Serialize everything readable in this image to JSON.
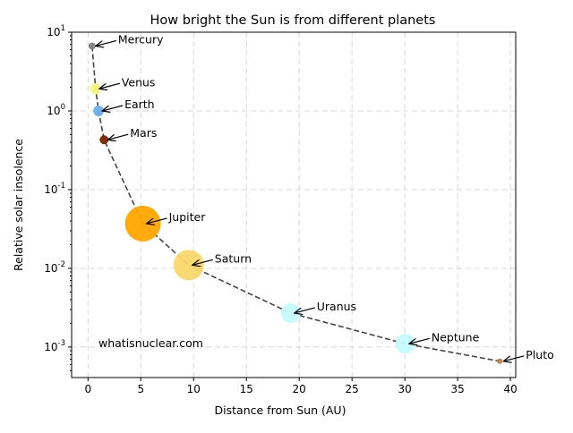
{
  "chart_data": {
    "type": "scatter",
    "title": "How bright the Sun is from different planets",
    "xlabel": "Distance from Sun (AU)",
    "ylabel": "Relative solar insolence",
    "xlim": [
      -1.55,
      40.5
    ],
    "ylim": [
      0.00041,
      10
    ],
    "yscale": "log",
    "xticks": [
      0,
      5,
      10,
      15,
      20,
      25,
      30,
      35,
      40
    ],
    "xtick_labels": [
      "0",
      "5",
      "10",
      "15",
      "20",
      "25",
      "30",
      "35",
      "40"
    ],
    "yticks": [
      10,
      1,
      0.1,
      0.01,
      0.001
    ],
    "ytick_labels": [
      "10^1",
      "10^0",
      "10^-1",
      "10^-2",
      "10^-3"
    ],
    "grid": true,
    "line_style": "dashed",
    "line_color": "#444444",
    "annotation": "whatisnuclear.com",
    "points": [
      {
        "name": "Mercury",
        "x": 0.387,
        "y": 6.67,
        "color": "#808080",
        "size": 4
      },
      {
        "name": "Venus",
        "x": 0.723,
        "y": 1.91,
        "color": "#f8f87a",
        "size": 6
      },
      {
        "name": "Earth",
        "x": 1.0,
        "y": 1.0,
        "color": "#6aaef0",
        "size": 6
      },
      {
        "name": "Mars",
        "x": 1.524,
        "y": 0.43,
        "color": "#7a2400",
        "size": 5
      },
      {
        "name": "Jupiter",
        "x": 5.2,
        "y": 0.037,
        "color": "#ffa500",
        "size": 20
      },
      {
        "name": "Saturn",
        "x": 9.54,
        "y": 0.011,
        "color": "#f9d86a",
        "size": 17
      },
      {
        "name": "Uranus",
        "x": 19.2,
        "y": 0.0027,
        "color": "#c4fbfd",
        "size": 11
      },
      {
        "name": "Neptune",
        "x": 30.06,
        "y": 0.0011,
        "color": "#c4fbfd",
        "size": 11
      },
      {
        "name": "Pluto",
        "x": 39.0,
        "y": 0.00066,
        "color": "#c08040",
        "size": 3
      }
    ]
  }
}
